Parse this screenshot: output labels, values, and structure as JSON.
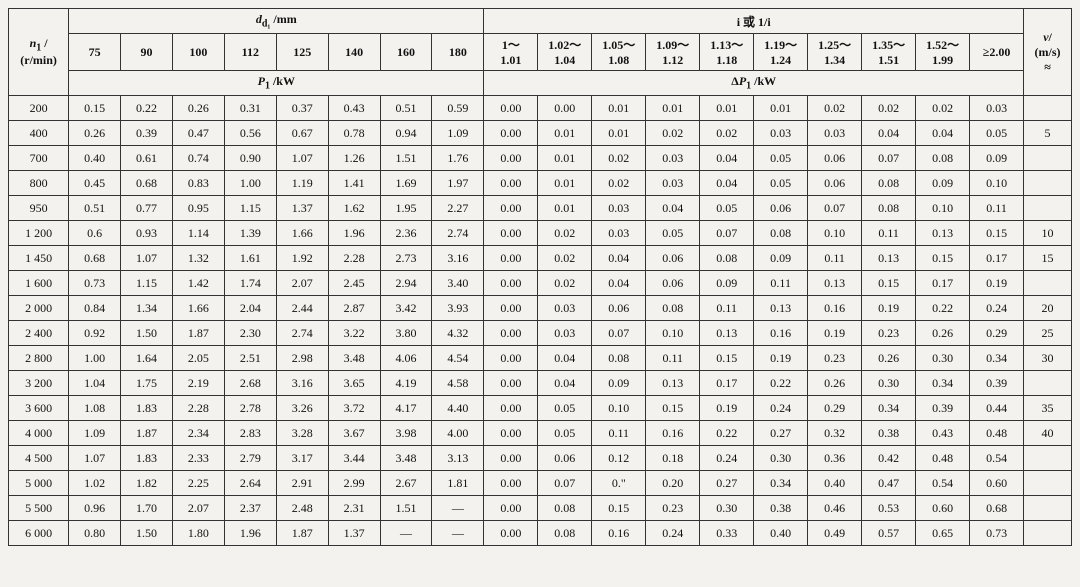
{
  "headers": {
    "n1": "n₁ /\n(r/min)",
    "dd1": "d_{d₁} /mm",
    "dcols": [
      "75",
      "90",
      "100",
      "112",
      "125",
      "140",
      "160",
      "180"
    ],
    "p1": "P₁ /kW",
    "i_title": "i 或 1/i",
    "icols": [
      "1～\n1.01",
      "1.02～\n1.04",
      "1.05～\n1.08",
      "1.09～\n1.12",
      "1.13～\n1.18",
      "1.19～\n1.24",
      "1.25～\n1.34",
      "1.35～\n1.51",
      "1.52～\n1.99",
      "≥2.00"
    ],
    "dp1": "ΔP₁ /kW",
    "v": "v/\n(m/s)\n≈"
  },
  "rows": [
    {
      "n": "200",
      "d": [
        "0.15",
        "0.22",
        "0.26",
        "0.31",
        "0.37",
        "0.43",
        "0.51",
        "0.59"
      ],
      "i": [
        "0.00",
        "0.00",
        "0.01",
        "0.01",
        "0.01",
        "0.01",
        "0.02",
        "0.02",
        "0.02",
        "0.03"
      ],
      "v": ""
    },
    {
      "n": "400",
      "d": [
        "0.26",
        "0.39",
        "0.47",
        "0.56",
        "0.67",
        "0.78",
        "0.94",
        "1.09"
      ],
      "i": [
        "0.00",
        "0.01",
        "0.01",
        "0.02",
        "0.02",
        "0.03",
        "0.03",
        "0.04",
        "0.04",
        "0.05"
      ],
      "v": "5"
    },
    {
      "n": "700",
      "d": [
        "0.40",
        "0.61",
        "0.74",
        "0.90",
        "1.07",
        "1.26",
        "1.51",
        "1.76"
      ],
      "i": [
        "0.00",
        "0.01",
        "0.02",
        "0.03",
        "0.04",
        "0.05",
        "0.06",
        "0.07",
        "0.08",
        "0.09"
      ],
      "v": ""
    },
    {
      "n": "800",
      "d": [
        "0.45",
        "0.68",
        "0.83",
        "1.00",
        "1.19",
        "1.41",
        "1.69",
        "1.97"
      ],
      "i": [
        "0.00",
        "0.01",
        "0.02",
        "0.03",
        "0.04",
        "0.05",
        "0.06",
        "0.08",
        "0.09",
        "0.10"
      ],
      "v": ""
    },
    {
      "n": "950",
      "d": [
        "0.51",
        "0.77",
        "0.95",
        "1.15",
        "1.37",
        "1.62",
        "1.95",
        "2.27"
      ],
      "i": [
        "0.00",
        "0.01",
        "0.03",
        "0.04",
        "0.05",
        "0.06",
        "0.07",
        "0.08",
        "0.10",
        "0.11"
      ],
      "v": ""
    },
    {
      "n": "1 200",
      "d": [
        "0.6",
        "0.93",
        "1.14",
        "1.39",
        "1.66",
        "1.96",
        "2.36",
        "2.74"
      ],
      "i": [
        "0.00",
        "0.02",
        "0.03",
        "0.05",
        "0.07",
        "0.08",
        "0.10",
        "0.11",
        "0.13",
        "0.15"
      ],
      "v": "10"
    },
    {
      "n": "1 450",
      "d": [
        "0.68",
        "1.07",
        "1.32",
        "1.61",
        "1.92",
        "2.28",
        "2.73",
        "3.16"
      ],
      "i": [
        "0.00",
        "0.02",
        "0.04",
        "0.06",
        "0.08",
        "0.09",
        "0.11",
        "0.13",
        "0.15",
        "0.17"
      ],
      "v": "15"
    },
    {
      "n": "1 600",
      "d": [
        "0.73",
        "1.15",
        "1.42",
        "1.74",
        "2.07",
        "2.45",
        "2.94",
        "3.40"
      ],
      "i": [
        "0.00",
        "0.02",
        "0.04",
        "0.06",
        "0.09",
        "0.11",
        "0.13",
        "0.15",
        "0.17",
        "0.19"
      ],
      "v": ""
    },
    {
      "n": "2 000",
      "d": [
        "0.84",
        "1.34",
        "1.66",
        "2.04",
        "2.44",
        "2.87",
        "3.42",
        "3.93"
      ],
      "i": [
        "0.00",
        "0.03",
        "0.06",
        "0.08",
        "0.11",
        "0.13",
        "0.16",
        "0.19",
        "0.22",
        "0.24"
      ],
      "v": "20"
    },
    {
      "n": "2 400",
      "d": [
        "0.92",
        "1.50",
        "1.87",
        "2.30",
        "2.74",
        "3.22",
        "3.80",
        "4.32"
      ],
      "i": [
        "0.00",
        "0.03",
        "0.07",
        "0.10",
        "0.13",
        "0.16",
        "0.19",
        "0.23",
        "0.26",
        "0.29"
      ],
      "v": "25"
    },
    {
      "n": "2 800",
      "d": [
        "1.00",
        "1.64",
        "2.05",
        "2.51",
        "2.98",
        "3.48",
        "4.06",
        "4.54"
      ],
      "i": [
        "0.00",
        "0.04",
        "0.08",
        "0.11",
        "0.15",
        "0.19",
        "0.23",
        "0.26",
        "0.30",
        "0.34"
      ],
      "v": "30"
    },
    {
      "n": "3 200",
      "d": [
        "1.04",
        "1.75",
        "2.19",
        "2.68",
        "3.16",
        "3.65",
        "4.19",
        "4.58"
      ],
      "i": [
        "0.00",
        "0.04",
        "0.09",
        "0.13",
        "0.17",
        "0.22",
        "0.26",
        "0.30",
        "0.34",
        "0.39"
      ],
      "v": ""
    },
    {
      "n": "3 600",
      "d": [
        "1.08",
        "1.83",
        "2.28",
        "2.78",
        "3.26",
        "3.72",
        "4.17",
        "4.40"
      ],
      "i": [
        "0.00",
        "0.05",
        "0.10",
        "0.15",
        "0.19",
        "0.24",
        "0.29",
        "0.34",
        "0.39",
        "0.44"
      ],
      "v": "35"
    },
    {
      "n": "4 000",
      "d": [
        "1.09",
        "1.87",
        "2.34",
        "2.83",
        "3.28",
        "3.67",
        "3.98",
        "4.00"
      ],
      "i": [
        "0.00",
        "0.05",
        "0.11",
        "0.16",
        "0.22",
        "0.27",
        "0.32",
        "0.38",
        "0.43",
        "0.48"
      ],
      "v": "40"
    },
    {
      "n": "4 500",
      "d": [
        "1.07",
        "1.83",
        "2.33",
        "2.79",
        "3.17",
        "3.44",
        "3.48",
        "3.13"
      ],
      "i": [
        "0.00",
        "0.06",
        "0.12",
        "0.18",
        "0.24",
        "0.30",
        "0.36",
        "0.42",
        "0.48",
        "0.54"
      ],
      "v": ""
    },
    {
      "n": "5 000",
      "d": [
        "1.02",
        "1.82",
        "2.25",
        "2.64",
        "2.91",
        "2.99",
        "2.67",
        "1.81"
      ],
      "i": [
        "0.00",
        "0.07",
        "0.\"",
        "0.20",
        "0.27",
        "0.34",
        "0.40",
        "0.47",
        "0.54",
        "0.60"
      ],
      "v": ""
    },
    {
      "n": "5 500",
      "d": [
        "0.96",
        "1.70",
        "2.07",
        "2.37",
        "2.48",
        "2.31",
        "1.51",
        "—"
      ],
      "i": [
        "0.00",
        "0.08",
        "0.15",
        "0.23",
        "0.30",
        "0.38",
        "0.46",
        "0.53",
        "0.60",
        "0.68"
      ],
      "v": ""
    },
    {
      "n": "6 000",
      "d": [
        "0.80",
        "1.50",
        "1.80",
        "1.96",
        "1.87",
        "1.37",
        "—",
        "—"
      ],
      "i": [
        "0.00",
        "0.08",
        "0.16",
        "0.24",
        "0.33",
        "0.40",
        "0.49",
        "0.57",
        "0.65",
        "0.73"
      ],
      "v": ""
    }
  ]
}
